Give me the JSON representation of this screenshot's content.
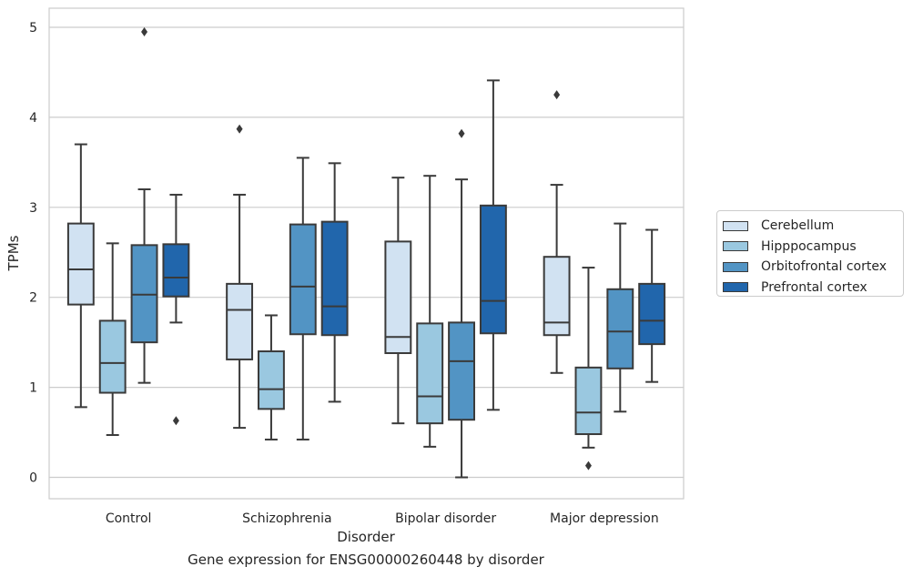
{
  "caption": "Gene expression for ENSG00000260448 by disorder",
  "chart_data": {
    "type": "boxplot",
    "title": "",
    "xlabel": "Disorder",
    "ylabel": "TPMs",
    "ylim": [
      -0.25,
      5.2
    ],
    "yticks": [
      0,
      1,
      2,
      3,
      4,
      5
    ],
    "grid": "horizontal",
    "legend_position": "center-right, outside",
    "categories": [
      "Control",
      "Schizophrenia",
      "Bipolar disorder",
      "Major depression"
    ],
    "series": [
      {
        "name": "Cerebellum",
        "color": "#d1e2f2",
        "boxes": [
          {
            "whislo": 0.78,
            "q1": 1.92,
            "med": 2.31,
            "q3": 2.82,
            "whishi": 3.7,
            "fliers": []
          },
          {
            "whislo": 0.55,
            "q1": 1.31,
            "med": 1.86,
            "q3": 2.15,
            "whishi": 3.14,
            "fliers": [
              3.87
            ]
          },
          {
            "whislo": 0.6,
            "q1": 1.38,
            "med": 1.56,
            "q3": 2.62,
            "whishi": 3.33,
            "fliers": []
          },
          {
            "whislo": 1.16,
            "q1": 1.58,
            "med": 1.72,
            "q3": 2.45,
            "whishi": 3.25,
            "fliers": [
              4.25
            ]
          }
        ]
      },
      {
        "name": "Hipppocampus",
        "color": "#9ac8e0",
        "boxes": [
          {
            "whislo": 0.47,
            "q1": 0.94,
            "med": 1.27,
            "q3": 1.74,
            "whishi": 2.6,
            "fliers": []
          },
          {
            "whislo": 0.42,
            "q1": 0.76,
            "med": 0.98,
            "q3": 1.4,
            "whishi": 1.8,
            "fliers": []
          },
          {
            "whislo": 0.34,
            "q1": 0.6,
            "med": 0.9,
            "q3": 1.71,
            "whishi": 3.35,
            "fliers": []
          },
          {
            "whislo": 0.33,
            "q1": 0.48,
            "med": 0.72,
            "q3": 1.22,
            "whishi": 2.33,
            "fliers": [
              0.13
            ]
          }
        ]
      },
      {
        "name": "Orbitofrontal cortex",
        "color": "#5294c4",
        "boxes": [
          {
            "whislo": 1.05,
            "q1": 1.5,
            "med": 2.03,
            "q3": 2.58,
            "whishi": 3.2,
            "fliers": [
              4.95
            ]
          },
          {
            "whislo": 0.42,
            "q1": 1.59,
            "med": 2.12,
            "q3": 2.81,
            "whishi": 3.55,
            "fliers": []
          },
          {
            "whislo": 0.0,
            "q1": 0.64,
            "med": 1.29,
            "q3": 1.72,
            "whishi": 3.31,
            "fliers": [
              3.82
            ]
          },
          {
            "whislo": 0.73,
            "q1": 1.21,
            "med": 1.62,
            "q3": 2.09,
            "whishi": 2.82,
            "fliers": []
          }
        ]
      },
      {
        "name": "Prefrontal cortex",
        "color": "#2166ac",
        "boxes": [
          {
            "whislo": 1.72,
            "q1": 2.01,
            "med": 2.22,
            "q3": 2.59,
            "whishi": 3.14,
            "fliers": [
              0.63
            ]
          },
          {
            "whislo": 0.84,
            "q1": 1.58,
            "med": 1.9,
            "q3": 2.84,
            "whishi": 3.49,
            "fliers": []
          },
          {
            "whislo": 0.75,
            "q1": 1.6,
            "med": 1.96,
            "q3": 3.02,
            "whishi": 4.41,
            "fliers": []
          },
          {
            "whislo": 1.06,
            "q1": 1.48,
            "med": 1.74,
            "q3": 2.15,
            "whishi": 2.75,
            "fliers": []
          }
        ]
      }
    ]
  }
}
